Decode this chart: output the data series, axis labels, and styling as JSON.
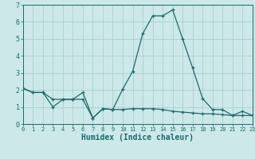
{
  "title": "",
  "xlabel": "Humidex (Indice chaleur)",
  "ylabel": "",
  "background_color": "#cce8e8",
  "grid_color": "#aacfcf",
  "line_color": "#1a6b6b",
  "x_values": [
    0,
    1,
    2,
    3,
    4,
    5,
    6,
    7,
    8,
    9,
    10,
    11,
    12,
    13,
    14,
    15,
    16,
    17,
    18,
    19,
    20,
    21,
    22,
    23
  ],
  "series1": [
    2.1,
    1.85,
    1.85,
    1.45,
    1.45,
    1.45,
    1.85,
    0.35,
    0.9,
    0.85,
    2.05,
    3.1,
    5.3,
    6.35,
    6.35,
    6.7,
    5.0,
    3.3,
    1.5,
    0.85,
    0.85,
    0.5,
    0.75,
    0.5
  ],
  "series2": [
    2.1,
    1.85,
    1.85,
    1.0,
    1.45,
    1.45,
    1.45,
    0.35,
    0.9,
    0.85,
    0.85,
    0.9,
    0.9,
    0.9,
    0.85,
    0.75,
    0.7,
    0.65,
    0.6,
    0.6,
    0.55,
    0.5,
    0.5,
    0.5
  ],
  "xlim": [
    0,
    23
  ],
  "ylim": [
    0,
    7
  ],
  "yticks": [
    0,
    1,
    2,
    3,
    4,
    5,
    6,
    7
  ],
  "xticks": [
    0,
    1,
    2,
    3,
    4,
    5,
    6,
    7,
    8,
    9,
    10,
    11,
    12,
    13,
    14,
    15,
    16,
    17,
    18,
    19,
    20,
    21,
    22,
    23
  ],
  "figsize": [
    3.2,
    2.0
  ],
  "dpi": 100
}
